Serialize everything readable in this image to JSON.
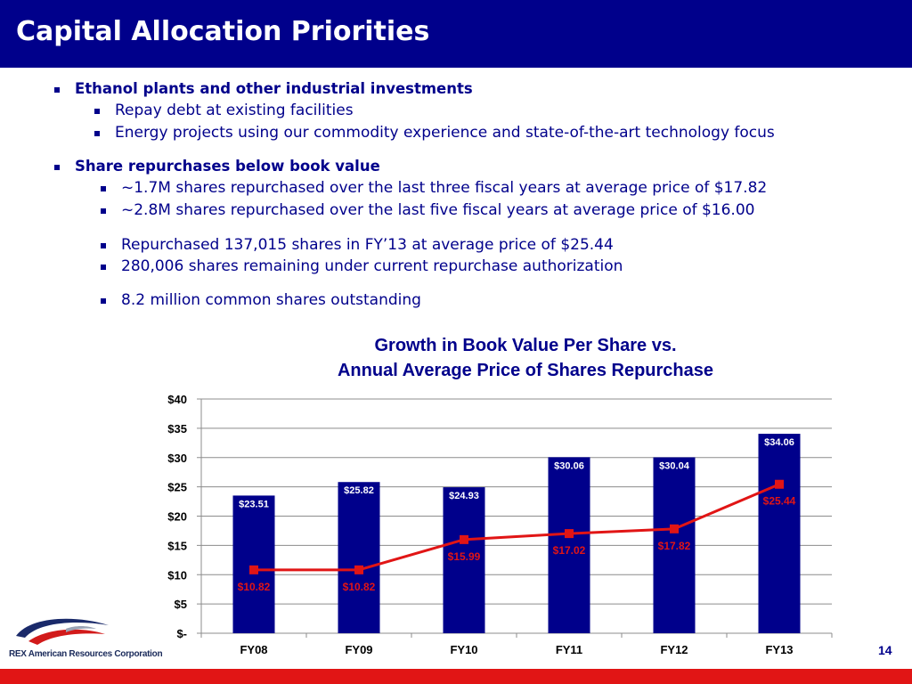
{
  "slide": {
    "title": "Capital Allocation Priorities",
    "page_number": "14",
    "company": "REX American Resources Corporation"
  },
  "bullets": [
    {
      "level": 1,
      "text": "Ethanol plants and other industrial investments"
    },
    {
      "level": 2,
      "text": "Repay debt at existing facilities"
    },
    {
      "level": 2,
      "text": "Energy projects using our commodity experience and state-of-the-art technology focus"
    },
    {
      "level": 1,
      "text": "Share repurchases below book value"
    },
    {
      "level": 2,
      "text": "~1.7M shares repurchased over the last three fiscal years at average price of $17.82"
    },
    {
      "level": 2,
      "text": "~2.8M shares repurchased over the last five fiscal years at average price of $16.00"
    },
    {
      "level": 2,
      "text": "Repurchased 137,015 shares in FY’13 at average price of $25.44"
    },
    {
      "level": 2,
      "text": "280,006 shares remaining under current repurchase authorization"
    },
    {
      "level": 2,
      "text": "8.2 million common shares outstanding"
    }
  ],
  "chart_data": {
    "type": "bar",
    "title_line1": "Growth in Book Value Per Share vs.",
    "title_line2": "Annual Average Price of Shares Repurchase",
    "categories": [
      "FY08",
      "FY09",
      "FY10",
      "FY11",
      "FY12",
      "FY13"
    ],
    "series": [
      {
        "type": "bar",
        "values": [
          23.51,
          25.82,
          24.93,
          30.06,
          30.04,
          34.06
        ],
        "labels": [
          "$23.51",
          "$25.82",
          "$24.93",
          "$30.06",
          "$30.04",
          "$34.06"
        ],
        "color": "#00008b"
      },
      {
        "type": "line",
        "values": [
          10.82,
          10.82,
          15.99,
          17.02,
          17.82,
          25.44
        ],
        "labels": [
          "$10.82",
          "$10.82",
          "$15.99",
          "$17.02",
          "$17.82",
          "$25.44"
        ],
        "color": "#e11515"
      }
    ],
    "ylim": [
      0,
      40
    ],
    "yticks": [
      0,
      5,
      10,
      15,
      20,
      25,
      30,
      35,
      40
    ],
    "ytick_labels": [
      "$-",
      "$5",
      "$10",
      "$15",
      "$20",
      "$25",
      "$30",
      "$35",
      "$40"
    ],
    "grid": true
  },
  "colors": {
    "brand_blue": "#00008b",
    "accent_red": "#e11515"
  }
}
